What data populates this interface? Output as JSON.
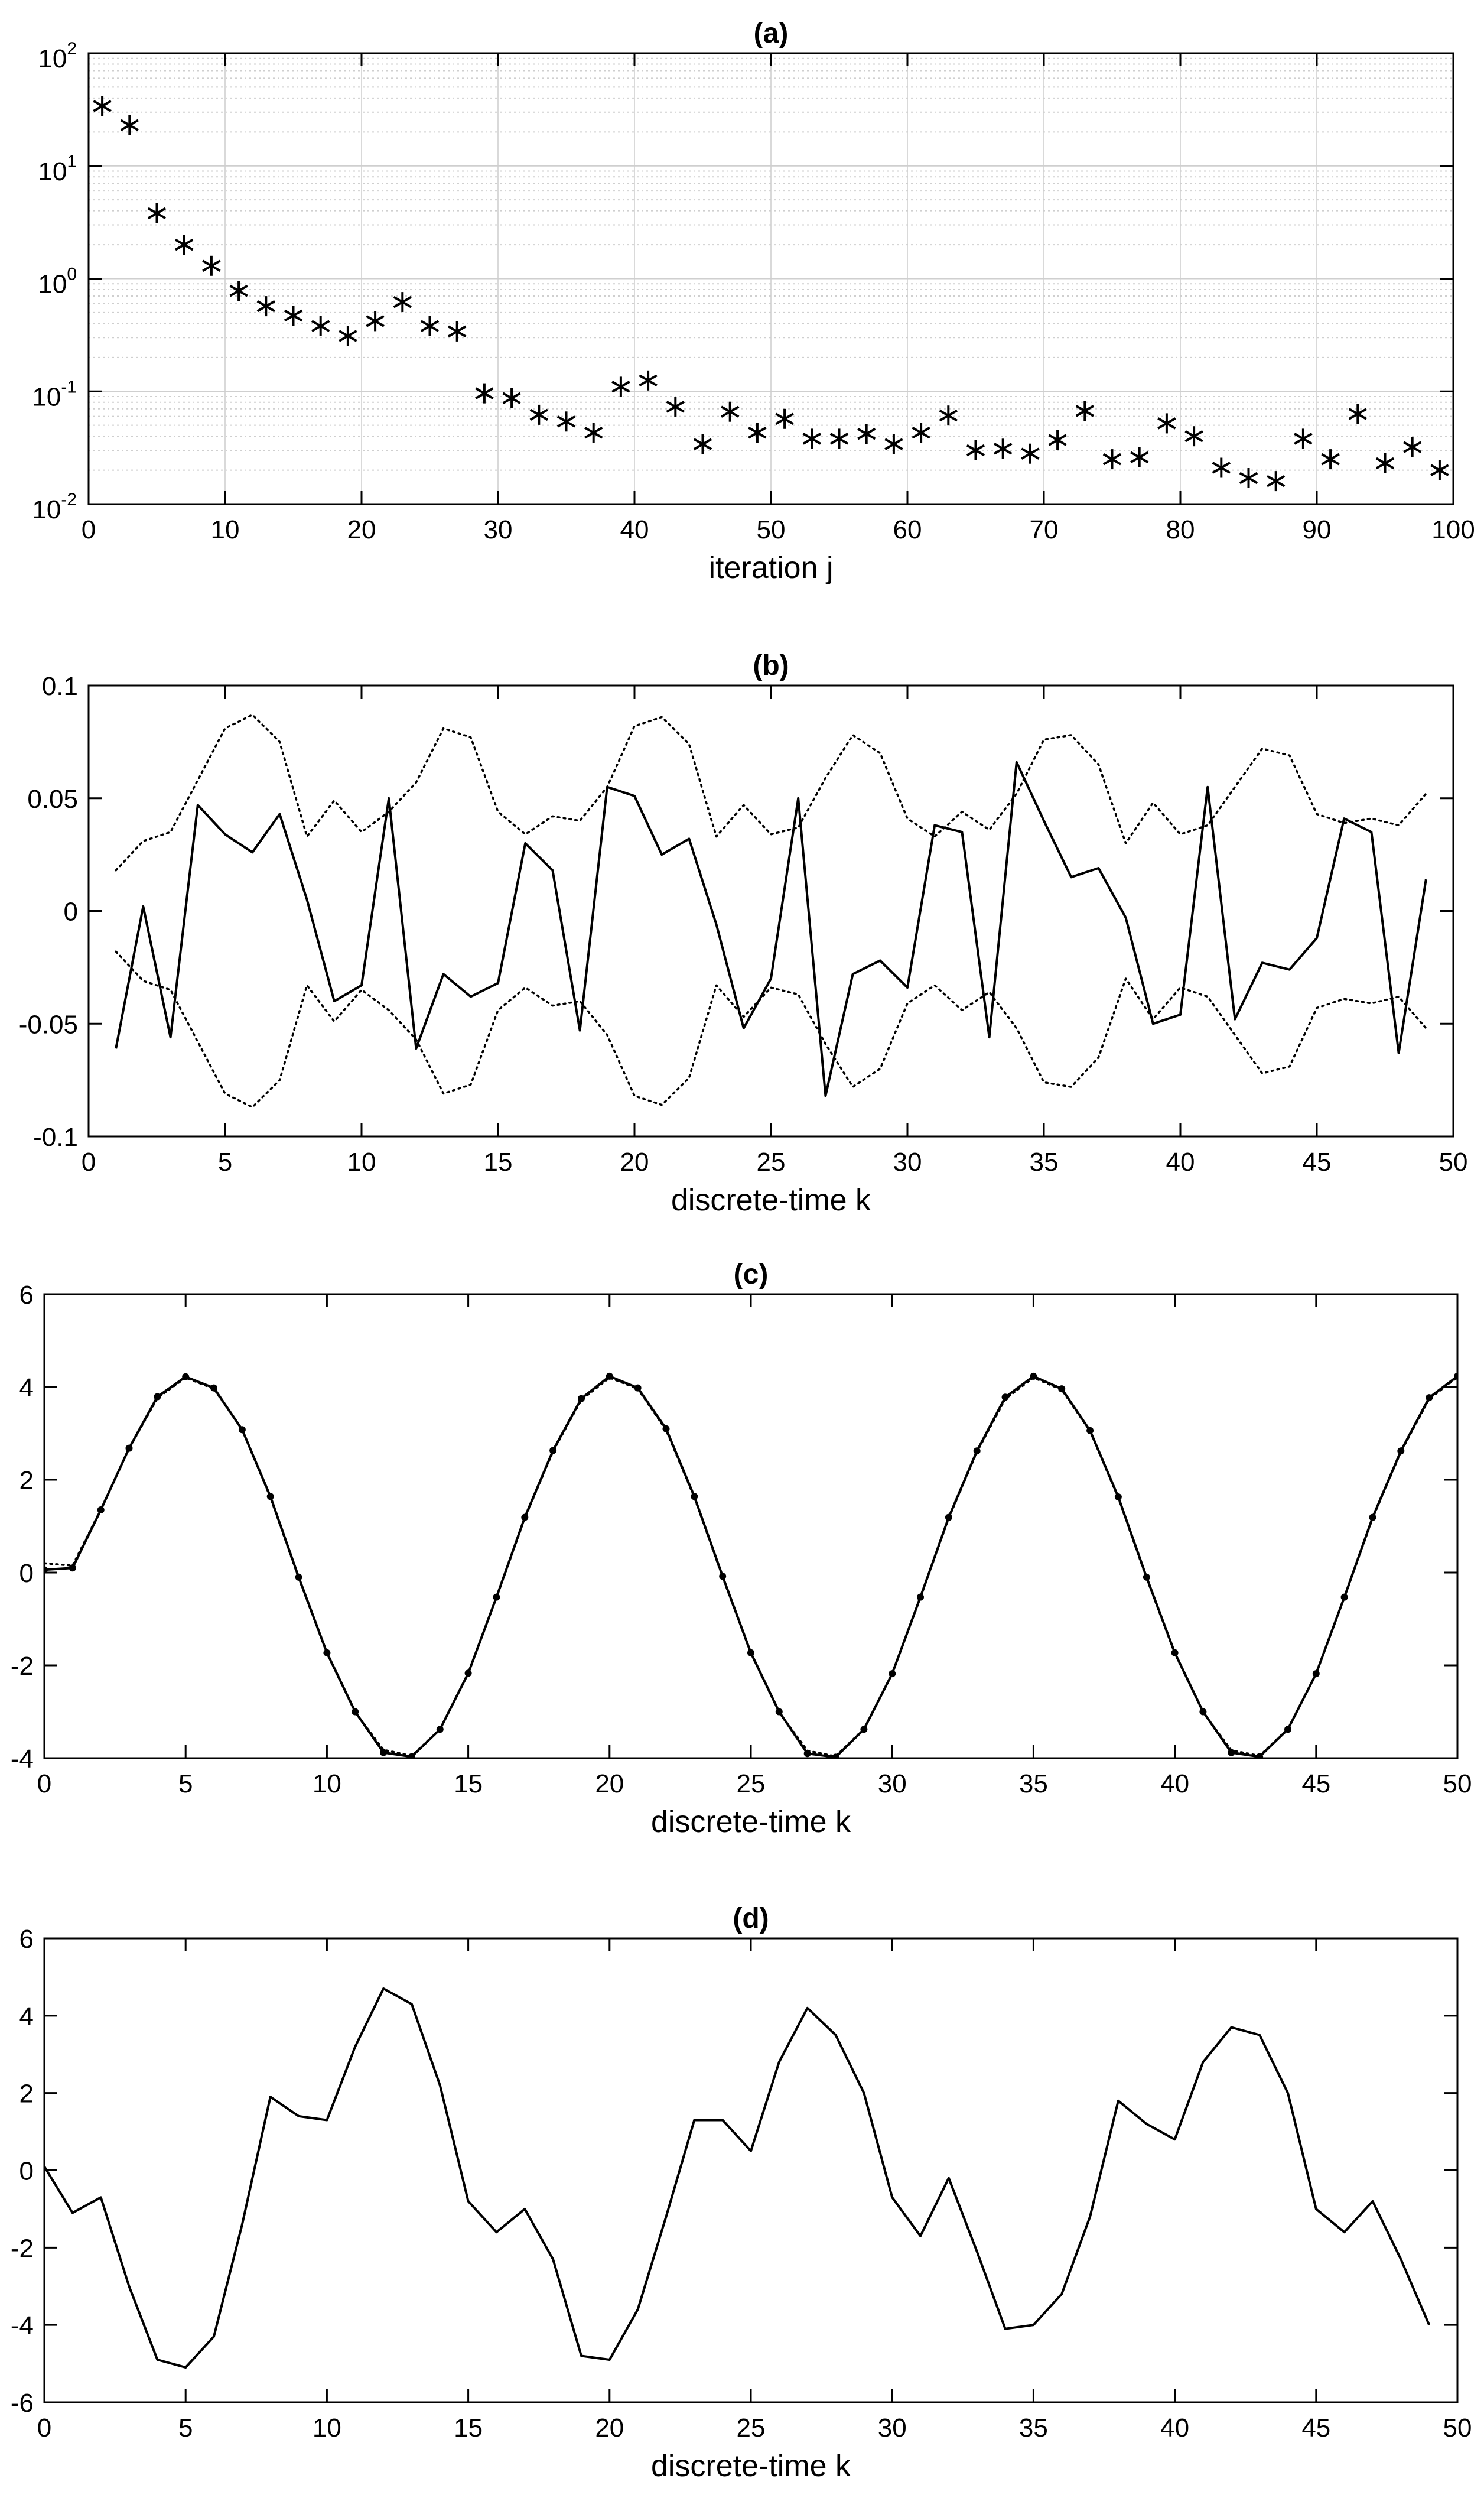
{
  "chart_data": [
    {
      "id": "a",
      "type": "scatter",
      "title": "(a)",
      "xlabel": "iteration j",
      "ylabel": "",
      "yscale": "log",
      "xlim": [
        0,
        100
      ],
      "ylim": [
        0.01,
        100
      ],
      "xticks": [
        0,
        10,
        20,
        30,
        40,
        50,
        60,
        70,
        80,
        90,
        100
      ],
      "yticks": [
        {
          "base": "10",
          "exp": "-2",
          "value": 0.01
        },
        {
          "base": "10",
          "exp": "-1",
          "value": 0.1
        },
        {
          "base": "10",
          "exp": "0",
          "value": 1
        },
        {
          "base": "10",
          "exp": "1",
          "value": 10
        },
        {
          "base": "10",
          "exp": "2",
          "value": 100
        }
      ],
      "grid": true,
      "marker": "asterisk",
      "series": [
        {
          "x": [
            1,
            3,
            5,
            7,
            9,
            11,
            13,
            15,
            17,
            19,
            21,
            23,
            25,
            27,
            29,
            31,
            33,
            35,
            37,
            39,
            41,
            43,
            45,
            47,
            49,
            51,
            53,
            55,
            57,
            59,
            61,
            63,
            65,
            67,
            69,
            71,
            73,
            75,
            77,
            79,
            81,
            83,
            85,
            87,
            89,
            91,
            93,
            95,
            97,
            99
          ],
          "values": [
            34,
            23,
            3.8,
            2.0,
            1.3,
            0.78,
            0.57,
            0.47,
            0.38,
            0.31,
            0.42,
            0.62,
            0.38,
            0.34,
            0.096,
            0.087,
            0.062,
            0.054,
            0.043,
            0.11,
            0.125,
            0.073,
            0.034,
            0.066,
            0.043,
            0.057,
            0.038,
            0.038,
            0.042,
            0.034,
            0.043,
            0.061,
            0.03,
            0.031,
            0.028,
            0.037,
            0.067,
            0.025,
            0.026,
            0.052,
            0.04,
            0.021,
            0.017,
            0.016,
            0.038,
            0.025,
            0.063,
            0.023,
            0.032,
            0.02
          ]
        }
      ]
    },
    {
      "id": "b",
      "type": "line",
      "title": "(b)",
      "xlabel": "discrete-time k",
      "ylabel": "",
      "xlim": [
        0,
        50
      ],
      "ylim": [
        -0.1,
        0.1
      ],
      "xticks": [
        0,
        5,
        10,
        15,
        20,
        25,
        30,
        35,
        40,
        45,
        50
      ],
      "yticks": [
        -0.1,
        -0.05,
        0,
        0.05,
        0.1
      ],
      "ytick_labels": [
        "-0.1",
        "-0.05",
        "0",
        "0.05",
        "0.1"
      ],
      "grid": false,
      "series": [
        {
          "style": "solid",
          "x": [
            1,
            2,
            3,
            4,
            5,
            6,
            7,
            8,
            9,
            10,
            11,
            12,
            13,
            14,
            15,
            16,
            17,
            18,
            19,
            20,
            21,
            22,
            23,
            24,
            25,
            26,
            27,
            28,
            29,
            30,
            31,
            32,
            33,
            34,
            35,
            36,
            37,
            38,
            39,
            40,
            41,
            42,
            43,
            44,
            45,
            46,
            47,
            48,
            49
          ],
          "values": [
            -0.061,
            0.002,
            -0.056,
            0.047,
            0.034,
            0.026,
            0.043,
            0.005,
            -0.04,
            -0.033,
            0.05,
            -0.061,
            -0.028,
            -0.038,
            -0.032,
            0.03,
            0.018,
            -0.053,
            0.055,
            0.051,
            0.025,
            0.032,
            -0.006,
            -0.052,
            -0.03,
            0.05,
            -0.082,
            -0.028,
            -0.022,
            -0.034,
            0.038,
            0.035,
            -0.056,
            0.066,
            0.04,
            0.015,
            0.019,
            -0.003,
            -0.05,
            -0.046,
            0.055,
            -0.048,
            -0.023,
            -0.026,
            -0.012,
            0.041,
            0.035,
            -0.063,
            0.014
          ]
        },
        {
          "style": "dotted",
          "x": [
            1,
            2,
            3,
            4,
            5,
            6,
            7,
            8,
            9,
            10,
            11,
            12,
            13,
            14,
            15,
            16,
            17,
            18,
            19,
            20,
            21,
            22,
            23,
            24,
            25,
            26,
            27,
            28,
            29,
            30,
            31,
            32,
            33,
            34,
            35,
            36,
            37,
            38,
            39,
            40,
            41,
            42,
            43,
            44,
            45,
            46,
            47,
            48,
            49
          ],
          "values": [
            0.018,
            0.031,
            0.035,
            0.058,
            0.081,
            0.087,
            0.075,
            0.033,
            0.049,
            0.035,
            0.044,
            0.057,
            0.081,
            0.077,
            0.044,
            0.034,
            0.042,
            0.04,
            0.055,
            0.082,
            0.086,
            0.074,
            0.033,
            0.047,
            0.034,
            0.037,
            0.059,
            0.078,
            0.07,
            0.041,
            0.033,
            0.044,
            0.036,
            0.052,
            0.076,
            0.078,
            0.065,
            0.03,
            0.048,
            0.034,
            0.038,
            0.055,
            0.072,
            0.069,
            0.043,
            0.039,
            0.041,
            0.038,
            0.052
          ]
        },
        {
          "style": "dotted",
          "x": [
            1,
            2,
            3,
            4,
            5,
            6,
            7,
            8,
            9,
            10,
            11,
            12,
            13,
            14,
            15,
            16,
            17,
            18,
            19,
            20,
            21,
            22,
            23,
            24,
            25,
            26,
            27,
            28,
            29,
            30,
            31,
            32,
            33,
            34,
            35,
            36,
            37,
            38,
            39,
            40,
            41,
            42,
            43,
            44,
            45,
            46,
            47,
            48,
            49
          ],
          "values": [
            -0.018,
            -0.031,
            -0.035,
            -0.058,
            -0.081,
            -0.087,
            -0.075,
            -0.033,
            -0.049,
            -0.035,
            -0.044,
            -0.057,
            -0.081,
            -0.077,
            -0.044,
            -0.034,
            -0.042,
            -0.04,
            -0.055,
            -0.082,
            -0.086,
            -0.074,
            -0.033,
            -0.047,
            -0.034,
            -0.037,
            -0.059,
            -0.078,
            -0.07,
            -0.041,
            -0.033,
            -0.044,
            -0.036,
            -0.052,
            -0.076,
            -0.078,
            -0.065,
            -0.03,
            -0.048,
            -0.034,
            -0.038,
            -0.055,
            -0.072,
            -0.069,
            -0.043,
            -0.039,
            -0.041,
            -0.038,
            -0.052
          ]
        }
      ]
    },
    {
      "id": "c",
      "type": "line",
      "title": "(c)",
      "xlabel": "discrete-time k",
      "ylabel": "",
      "xlim": [
        0,
        50
      ],
      "ylim": [
        -4,
        6
      ],
      "xticks": [
        0,
        5,
        10,
        15,
        20,
        25,
        30,
        35,
        40,
        45,
        50
      ],
      "yticks": [
        -4,
        -2,
        0,
        2,
        4,
        6
      ],
      "ytick_labels": [
        "-4",
        "-2",
        "0",
        "2",
        "4",
        "6"
      ],
      "grid": false,
      "series": [
        {
          "style": "solid",
          "marker": "dot",
          "x": [
            0,
            1,
            2,
            3,
            4,
            5,
            6,
            7,
            8,
            9,
            10,
            11,
            12,
            13,
            14,
            15,
            16,
            17,
            18,
            19,
            20,
            21,
            22,
            23,
            24,
            25,
            26,
            27,
            28,
            29,
            30,
            31,
            32,
            33,
            34,
            35,
            36,
            37,
            38,
            39,
            40,
            41,
            42,
            43,
            44,
            45,
            46,
            47,
            48,
            49,
            50
          ],
          "values": [
            0.06,
            0.1,
            1.35,
            2.68,
            3.79,
            4.22,
            3.98,
            3.08,
            1.64,
            -0.1,
            -1.73,
            -3.0,
            -3.88,
            -3.97,
            -3.38,
            -2.17,
            -0.53,
            1.19,
            2.63,
            3.75,
            4.23,
            3.98,
            3.1,
            1.64,
            -0.08,
            -1.73,
            -3.0,
            -3.9,
            -3.98,
            -3.38,
            -2.18,
            -0.53,
            1.19,
            2.62,
            3.78,
            4.23,
            3.96,
            3.06,
            1.63,
            -0.1,
            -1.73,
            -3.0,
            -3.88,
            -3.97,
            -3.38,
            -2.18,
            -0.53,
            1.19,
            2.62,
            3.77,
            4.23
          ]
        },
        {
          "style": "dotted",
          "x": [
            0,
            1,
            2,
            3,
            4,
            5,
            6,
            7,
            8,
            9,
            10,
            11,
            12,
            13,
            14,
            15,
            16,
            17,
            18,
            19,
            20,
            21,
            22,
            23,
            24,
            25,
            26,
            27,
            28,
            29,
            30,
            31,
            32,
            33,
            34,
            35,
            36,
            37,
            38,
            39,
            40,
            41,
            42,
            43,
            44,
            45,
            46,
            47,
            48,
            49,
            50
          ],
          "values": [
            0.2,
            0.15,
            1.36,
            2.67,
            3.76,
            4.2,
            3.96,
            3.08,
            1.62,
            -0.12,
            -1.74,
            -3.01,
            -3.82,
            -3.95,
            -3.38,
            -2.18,
            -0.54,
            1.17,
            2.61,
            3.72,
            4.2,
            3.96,
            3.07,
            1.62,
            -0.1,
            -1.74,
            -3.01,
            -3.84,
            -3.96,
            -3.37,
            -2.18,
            -0.54,
            1.17,
            2.6,
            3.74,
            4.2,
            3.94,
            3.05,
            1.61,
            -0.12,
            -1.74,
            -3.01,
            -3.83,
            -3.95,
            -3.37,
            -2.18,
            -0.54,
            1.17,
            2.6,
            3.74,
            4.21
          ]
        }
      ]
    },
    {
      "id": "d",
      "type": "line",
      "title": "(d)",
      "xlabel": "discrete-time k",
      "ylabel": "",
      "xlim": [
        0,
        50
      ],
      "ylim": [
        -6,
        6
      ],
      "xticks": [
        0,
        5,
        10,
        15,
        20,
        25,
        30,
        35,
        40,
        45,
        50
      ],
      "yticks": [
        -6,
        -4,
        -2,
        0,
        2,
        4,
        6
      ],
      "ytick_labels": [
        "-6",
        "-4",
        "-2",
        "0",
        "2",
        "4",
        "6"
      ],
      "grid": false,
      "series": [
        {
          "style": "solid",
          "x": [
            0,
            1,
            2,
            3,
            4,
            5,
            6,
            7,
            8,
            9,
            10,
            11,
            12,
            13,
            14,
            15,
            16,
            17,
            18,
            19,
            20,
            21,
            22,
            23,
            24,
            25,
            26,
            27,
            28,
            29,
            30,
            31,
            32,
            33,
            34,
            35,
            36,
            37,
            38,
            39,
            40,
            41,
            42,
            43,
            44,
            45,
            46,
            47,
            48,
            49
          ],
          "values": [
            0.1,
            -1.1,
            -0.7,
            -3.0,
            -4.9,
            -5.1,
            -4.3,
            -1.4,
            1.9,
            1.4,
            1.3,
            3.2,
            4.7,
            4.3,
            2.2,
            -0.8,
            -1.6,
            -1.0,
            -2.3,
            -4.8,
            -4.9,
            -3.6,
            -1.2,
            1.3,
            1.3,
            0.5,
            2.8,
            4.2,
            3.5,
            2.0,
            -0.7,
            -1.7,
            -0.2,
            -2.1,
            -4.1,
            -4.0,
            -3.2,
            -1.2,
            1.8,
            1.2,
            0.8,
            2.8,
            3.7,
            3.5,
            2.0,
            -1.0,
            -1.6,
            -0.8,
            -2.3,
            -4.0
          ]
        }
      ]
    }
  ]
}
